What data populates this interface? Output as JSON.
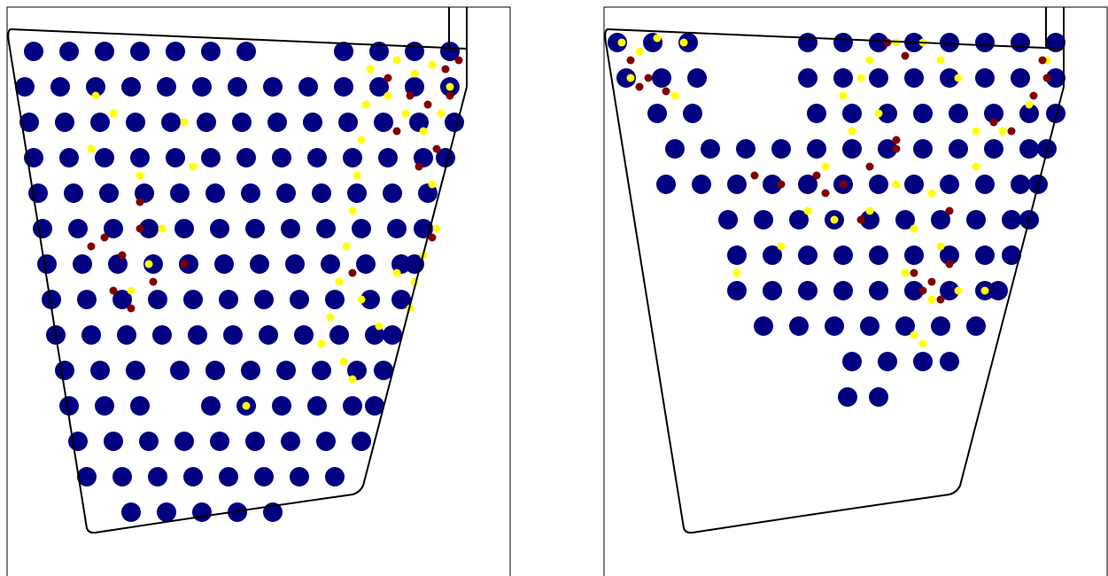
{
  "chart_data": [
    {
      "type": "scatter",
      "xlim": [
        0,
        568
      ],
      "ylim": [
        642,
        0
      ],
      "series": [
        {
          "color": "#000080",
          "x": [
            30,
            70,
            110,
            150,
            190,
            230,
            270,
            380,
            420,
            460,
            500,
            20,
            60,
            100,
            140,
            180,
            220,
            260,
            300,
            340,
            380,
            420,
            460,
            500,
            25,
            65,
            105,
            145,
            185,
            225,
            265,
            305,
            345,
            385,
            425,
            465,
            505,
            30,
            70,
            110,
            150,
            190,
            230,
            270,
            310,
            350,
            390,
            430,
            470,
            495,
            35,
            75,
            115,
            155,
            195,
            235,
            275,
            315,
            355,
            395,
            435,
            475,
            40,
            80,
            120,
            160,
            200,
            240,
            280,
            320,
            360,
            400,
            440,
            470,
            45,
            85,
            125,
            165,
            205,
            245,
            285,
            325,
            365,
            405,
            445,
            460,
            50,
            90,
            130,
            170,
            210,
            250,
            290,
            330,
            370,
            410,
            445,
            55,
            95,
            135,
            175,
            215,
            255,
            295,
            335,
            375,
            415,
            435,
            65,
            105,
            145,
            195,
            235,
            275,
            315,
            355,
            395,
            425,
            70,
            110,
            150,
            230,
            270,
            310,
            350,
            390,
            415,
            80,
            120,
            160,
            200,
            240,
            280,
            320,
            360,
            400,
            90,
            130,
            170,
            210,
            250,
            290,
            330,
            370,
            140,
            180,
            220,
            260,
            300
          ],
          "values": [
            50,
            50,
            50,
            50,
            50,
            50,
            50,
            50,
            50,
            50,
            50,
            90,
            90,
            90,
            90,
            90,
            90,
            90,
            90,
            90,
            90,
            90,
            90,
            90,
            130,
            130,
            130,
            130,
            130,
            130,
            130,
            130,
            130,
            130,
            130,
            130,
            130,
            170,
            170,
            170,
            170,
            170,
            170,
            170,
            170,
            170,
            170,
            170,
            170,
            170,
            210,
            210,
            210,
            210,
            210,
            210,
            210,
            210,
            210,
            210,
            210,
            210,
            250,
            250,
            250,
            250,
            250,
            250,
            250,
            250,
            250,
            250,
            250,
            250,
            290,
            290,
            290,
            290,
            290,
            290,
            290,
            290,
            290,
            290,
            290,
            290,
            330,
            330,
            330,
            330,
            330,
            330,
            330,
            330,
            330,
            330,
            330,
            370,
            370,
            370,
            370,
            370,
            370,
            370,
            370,
            370,
            370,
            370,
            410,
            410,
            410,
            410,
            410,
            410,
            410,
            410,
            410,
            410,
            450,
            450,
            450,
            450,
            450,
            450,
            450,
            450,
            450,
            490,
            490,
            490,
            490,
            490,
            490,
            490,
            490,
            490,
            530,
            530,
            530,
            530,
            530,
            530,
            530,
            530,
            570,
            570,
            570,
            570,
            570
          ]
        },
        {
          "color": "#ffff00",
          "x": [
            410,
            405,
            400,
            395,
            390,
            383,
            375,
            365,
            355,
            480,
            485,
            470,
            460,
            455,
            440,
            460,
            480,
            500,
            450,
            470,
            430,
            490,
            95,
            120,
            150,
            175,
            210,
            100,
            140,
            200,
            160,
            390,
            400,
            420,
            380,
            270,
            440
          ],
          "values": [
            70,
            110,
            150,
            190,
            230,
            270,
            310,
            350,
            380,
            200,
            250,
            280,
            310,
            340,
            60,
            75,
            65,
            90,
            120,
            140,
            100,
            120,
            160,
            120,
            190,
            250,
            180,
            100,
            320,
            130,
            290,
            420,
            330,
            360,
            400,
            450,
            300
          ]
        },
        {
          "color": "#800000",
          "x": [
            430,
            455,
            475,
            495,
            510,
            500,
            440,
            465,
            485,
            110,
            130,
            150,
            120,
            140,
            95,
            165,
            200,
            150,
            480,
            390
          ],
          "values": [
            80,
            100,
            110,
            70,
            60,
            100,
            140,
            180,
            160,
            260,
            280,
            250,
            320,
            340,
            270,
            310,
            290,
            220,
            260,
            300
          ]
        }
      ]
    },
    {
      "type": "scatter",
      "xlim": [
        0,
        568
      ],
      "ylim": [
        642,
        0
      ],
      "series": [
        {
          "color": "#000080",
          "x": [
            15,
            55,
            95,
            230,
            270,
            310,
            350,
            390,
            430,
            470,
            510,
            25,
            65,
            105,
            230,
            270,
            310,
            350,
            390,
            430,
            470,
            510,
            60,
            100,
            240,
            280,
            320,
            360,
            400,
            440,
            480,
            510,
            80,
            120,
            160,
            200,
            240,
            280,
            320,
            360,
            400,
            440,
            480,
            500,
            70,
            110,
            150,
            190,
            230,
            270,
            310,
            350,
            390,
            430,
            470,
            490,
            140,
            180,
            220,
            260,
            300,
            340,
            380,
            420,
            460,
            480,
            150,
            190,
            230,
            270,
            310,
            350,
            390,
            430,
            460,
            150,
            190,
            230,
            270,
            310,
            350,
            390,
            430,
            445,
            180,
            220,
            260,
            300,
            340,
            380,
            420,
            280,
            320,
            360,
            390,
            275,
            310
          ],
          "values": [
            40,
            40,
            40,
            40,
            40,
            40,
            40,
            40,
            40,
            40,
            40,
            80,
            80,
            80,
            80,
            80,
            80,
            80,
            80,
            80,
            80,
            80,
            120,
            120,
            120,
            120,
            120,
            120,
            120,
            120,
            120,
            120,
            160,
            160,
            160,
            160,
            160,
            160,
            160,
            160,
            160,
            160,
            160,
            160,
            200,
            200,
            200,
            200,
            200,
            200,
            200,
            200,
            200,
            200,
            200,
            200,
            240,
            240,
            240,
            240,
            240,
            240,
            240,
            240,
            240,
            240,
            280,
            280,
            280,
            280,
            280,
            280,
            280,
            280,
            280,
            320,
            320,
            320,
            320,
            320,
            320,
            320,
            320,
            320,
            360,
            360,
            360,
            360,
            360,
            360,
            360,
            400,
            400,
            400,
            400,
            440,
            440
          ]
        },
        {
          "color": "#ffff00",
          "x": [
            20,
            40,
            60,
            90,
            80,
            30,
            290,
            300,
            330,
            360,
            380,
            400,
            270,
            280,
            310,
            250,
            230,
            260,
            300,
            330,
            350,
            370,
            420,
            450,
            480,
            500,
            340,
            370,
            400,
            430,
            380,
            150,
            200,
            350,
            360,
            420
          ],
          "values": [
            40,
            50,
            35,
            40,
            100,
            80,
            80,
            60,
            40,
            40,
            60,
            80,
            100,
            140,
            120,
            180,
            230,
            240,
            230,
            200,
            250,
            210,
            140,
            140,
            110,
            60,
            300,
            330,
            320,
            320,
            270,
            300,
            270,
            370,
            380,
            180
          ]
        },
        {
          "color": "#800000",
          "x": [
            30,
            50,
            70,
            40,
            320,
            340,
            330,
            240,
            250,
            270,
            300,
            290,
            330,
            440,
            460,
            495,
            500,
            485,
            350,
            370,
            390,
            380,
            360,
            170,
            200,
            390
          ],
          "values": [
            60,
            80,
            95,
            90,
            40,
            55,
            150,
            190,
            210,
            200,
            180,
            240,
            160,
            130,
            140,
            60,
            80,
            100,
            300,
            310,
            290,
            330,
            320,
            190,
            200,
            230
          ]
        }
      ]
    }
  ]
}
